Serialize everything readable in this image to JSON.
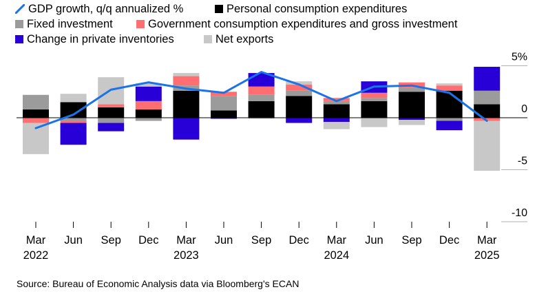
{
  "chart_data": {
    "type": "bar",
    "stacked": true,
    "title": "",
    "ylabel": "",
    "ylim": [
      -10,
      5
    ],
    "yticks": [
      5,
      0,
      -5,
      -10
    ],
    "yticklabels": [
      "5%",
      "0",
      "-5",
      "-10"
    ],
    "categories": [
      "Mar 2022",
      "Jun 2022",
      "Sep 2022",
      "Dec 2022",
      "Mar 2023",
      "Jun 2023",
      "Sep 2023",
      "Dec 2023",
      "Mar 2024",
      "Jun 2024",
      "Sep 2024",
      "Dec 2024",
      "Mar 2025"
    ],
    "x_tick_labels": [
      {
        "month": "Mar",
        "year": "2022"
      },
      {
        "month": "Jun",
        "year": ""
      },
      {
        "month": "Sep",
        "year": ""
      },
      {
        "month": "Dec",
        "year": ""
      },
      {
        "month": "Mar",
        "year": "2023"
      },
      {
        "month": "Jun",
        "year": ""
      },
      {
        "month": "Sep",
        "year": ""
      },
      {
        "month": "Dec",
        "year": ""
      },
      {
        "month": "Mar",
        "year": "2024"
      },
      {
        "month": "Jun",
        "year": ""
      },
      {
        "month": "Sep",
        "year": ""
      },
      {
        "month": "Dec",
        "year": ""
      },
      {
        "month": "Mar",
        "year": "2025"
      }
    ],
    "series": [
      {
        "name": "Personal consumption expenditures",
        "color": "#000000",
        "values": [
          0.8,
          1.5,
          1.0,
          0.8,
          2.6,
          0.7,
          1.6,
          2.1,
          1.3,
          1.6,
          2.5,
          2.6,
          1.3
        ]
      },
      {
        "name": "Fixed investment",
        "color": "#9b9b9b",
        "values": [
          1.4,
          -0.3,
          -0.5,
          -0.3,
          0.5,
          1.4,
          0.6,
          0.5,
          0.3,
          0.3,
          0.4,
          -0.3,
          1.3
        ]
      },
      {
        "name": "Government consumption expenditures and gross investment",
        "color": "#ff6e70",
        "values": [
          -0.5,
          -0.2,
          0.3,
          0.8,
          0.9,
          0.4,
          0.8,
          0.6,
          0.3,
          0.5,
          0.5,
          0.5,
          -0.3
        ]
      },
      {
        "name": "Change in private inventories",
        "color": "#2800d7",
        "values": [
          0.0,
          -2.1,
          -0.8,
          1.4,
          -2.1,
          -0.1,
          1.3,
          -0.5,
          -0.4,
          1.1,
          -0.2,
          -0.9,
          2.3
        ]
      },
      {
        "name": "Net exports",
        "color": "#c8c8c8",
        "values": [
          -3.0,
          0.8,
          2.6,
          0.3,
          0.3,
          0.0,
          -0.1,
          0.3,
          -0.7,
          -0.9,
          -0.5,
          0.2,
          -4.8
        ]
      }
    ],
    "line": {
      "name": "GDP growth, q/q annualized %",
      "color": "#1a73e8",
      "values": [
        -1.0,
        0.3,
        2.7,
        3.4,
        2.8,
        2.4,
        4.4,
        3.2,
        1.6,
        3.0,
        3.1,
        2.4,
        -0.3
      ]
    }
  },
  "source": "Source: Bureau of Economic Analysis data via Bloomberg's ECAN"
}
